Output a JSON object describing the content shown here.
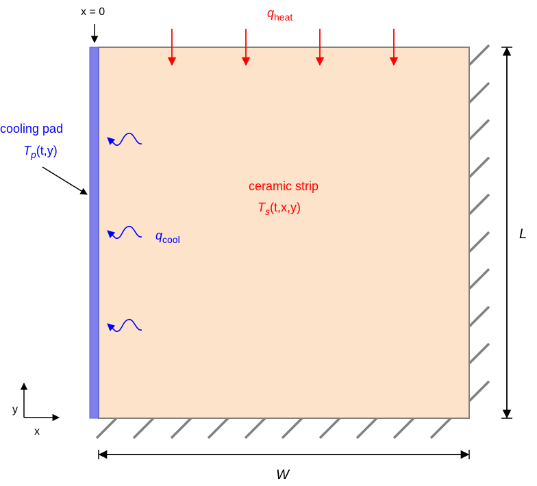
{
  "labels": {
    "x_origin": "x = 0",
    "q_heat_main": "q",
    "q_heat_sub": "heat",
    "pad_line1": "cooling pad",
    "pad_T": "T",
    "pad_T_sub": "p",
    "pad_args": "(t,y)",
    "strip_line1": "ceramic strip",
    "strip_T": "T",
    "strip_T_sub": "s",
    "strip_args": "(t,x,y)",
    "q_cool_main": "q",
    "q_cool_sub": "cool",
    "length": "L",
    "width": "W",
    "axis_x": "x",
    "axis_y": "y"
  },
  "colors": {
    "strip_fill": "#fde3c9",
    "strip_stroke": "#808080",
    "pad_fill": "#7f7fec",
    "heat": "#ff0000",
    "cool": "#0000ff",
    "hatch": "#808080",
    "ink": "#000000"
  }
}
